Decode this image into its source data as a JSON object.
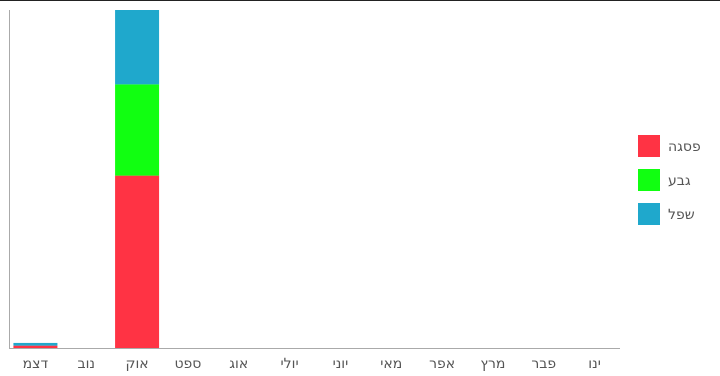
{
  "chart_data": {
    "type": "bar",
    "stacked": true,
    "orientation": "vertical",
    "direction": "rtl",
    "categories": [
      "ינו",
      "פבר",
      "מרץ",
      "אפר",
      "מאי",
      "יוני",
      "יולי",
      "אוג",
      "ספט",
      "אוק",
      "נוב",
      "דצמ"
    ],
    "series": [
      {
        "name": "פסגה",
        "color": "#ff3344",
        "values": [
          0,
          0,
          0,
          0,
          0,
          0,
          0,
          0,
          0,
          51,
          0,
          0.7
        ]
      },
      {
        "name": "גבע",
        "color": "#11ff11",
        "values": [
          0,
          0,
          0,
          0,
          0,
          0,
          0,
          0,
          0,
          27,
          0,
          0
        ]
      },
      {
        "name": "שפל",
        "color": "#1fa8cc",
        "values": [
          0,
          0,
          0,
          0,
          0,
          0,
          0,
          0,
          0,
          22,
          0,
          0.8
        ]
      }
    ],
    "ylim": [
      0,
      100
    ],
    "grid": false,
    "legend": "right"
  }
}
